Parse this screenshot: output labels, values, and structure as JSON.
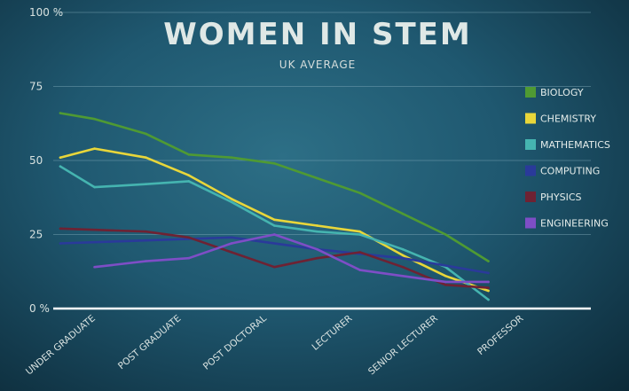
{
  "chart_data": {
    "type": "line",
    "title": "WOMEN IN STEM",
    "subtitle": "UK AVERAGE",
    "xlabel": "",
    "ylabel": "",
    "categories": [
      "UNDER GRADUATE",
      "POST GRADUATE",
      "POST DOCTORAL",
      "LECTURER",
      "SENIOR LECTURER",
      "PROFESSOR"
    ],
    "y_ticks": [
      {
        "value": 0,
        "label": "0 %"
      },
      {
        "value": 25,
        "label": "25"
      },
      {
        "value": 50,
        "label": "50"
      },
      {
        "value": 75,
        "label": "75"
      },
      {
        "value": 100,
        "label": "100 %"
      }
    ],
    "ylim": [
      0,
      100
    ],
    "grid": true,
    "legend_position": "right",
    "series": [
      {
        "name": "BIOLOGY",
        "color": "#4f9a33",
        "x": [
          0,
          0.4,
          1,
          1.5,
          2,
          2.5,
          3,
          3.5,
          4,
          4.5,
          5
        ],
        "values": [
          66,
          64,
          59,
          52,
          51,
          49,
          44,
          39,
          32,
          25,
          16
        ]
      },
      {
        "name": "CHEMISTRY",
        "color": "#e8d63a",
        "x": [
          0,
          0.4,
          1,
          1.5,
          2,
          2.5,
          3,
          3.5,
          4,
          4.5,
          5
        ],
        "values": [
          51,
          54,
          51,
          45,
          37,
          30,
          28,
          26,
          18,
          11,
          6
        ]
      },
      {
        "name": "MATHEMATICS",
        "color": "#45b4b0",
        "x": [
          0,
          0.4,
          1,
          1.5,
          2,
          2.5,
          3,
          3.5,
          4,
          4.5,
          5
        ],
        "values": [
          48,
          41,
          42,
          43,
          36,
          28,
          26,
          25,
          20,
          14,
          3
        ]
      },
      {
        "name": "COMPUTING",
        "color": "#2a3a9a",
        "x": [
          0,
          1,
          2,
          3,
          4,
          5
        ],
        "values": [
          22,
          23,
          24,
          20,
          17,
          12
        ]
      },
      {
        "name": "PHYSICS",
        "color": "#6e2233",
        "x": [
          0,
          1,
          1.5,
          2,
          2.5,
          3,
          3.5,
          4,
          4.5,
          5
        ],
        "values": [
          27,
          26,
          24,
          19,
          14,
          17,
          19,
          14,
          8,
          7
        ]
      },
      {
        "name": "ENGINEERING",
        "color": "#7e4ec6",
        "x": [
          0.4,
          1,
          1.5,
          2,
          2.5,
          3,
          3.5,
          4,
          4.5,
          5
        ],
        "values": [
          14,
          16,
          17,
          22,
          25,
          20,
          13,
          11,
          9,
          9
        ]
      }
    ]
  }
}
